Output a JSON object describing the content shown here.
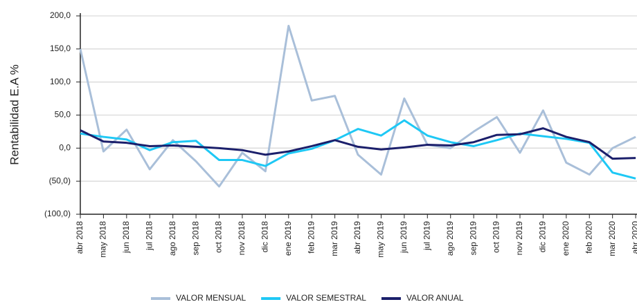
{
  "chart_data": {
    "type": "line",
    "y_label": "Rentabilidad E.A %",
    "categories": [
      "abr 2018",
      "may 2018",
      "jun 2018",
      "jul 2018",
      "ago 2018",
      "sep 2018",
      "oct 2018",
      "nov 2018",
      "dic 2018",
      "ene 2019",
      "feb 2019",
      "mar 2019",
      "abr 2019",
      "may 2019",
      "jun 2019",
      "jul 2019",
      "ago 2019",
      "sep 2019",
      "oct 2019",
      "nov 2019",
      "dic 2019",
      "ene 2020",
      "feb 2020",
      "mar 2020",
      "abr 2020"
    ],
    "series": [
      {
        "name": "VALOR MENSUAL",
        "color": "#a9bfd9",
        "values": [
          150,
          -5,
          28,
          -32,
          12,
          -20,
          -58,
          -7,
          -35,
          185,
          72,
          79,
          -10,
          -40,
          75,
          5,
          0,
          25,
          47,
          -7,
          57,
          -22,
          -40,
          0,
          17
        ]
      },
      {
        "name": "VALOR SEMESTRAL",
        "color": "#1ec8f5",
        "values": [
          22,
          17,
          13,
          -3,
          9,
          11,
          -18,
          -18,
          -27,
          -8,
          -1,
          12,
          29,
          19,
          42,
          19,
          9,
          3,
          12,
          22,
          18,
          14,
          8,
          -37,
          -46
        ]
      },
      {
        "name": "VALOR ANUAL",
        "color": "#1b1f6b",
        "values": [
          27,
          10,
          8,
          3,
          4,
          2,
          0,
          -3,
          -10,
          -5,
          3,
          12,
          2,
          -2,
          1,
          5,
          4,
          9,
          20,
          21,
          30,
          17,
          9,
          -16,
          -15
        ]
      }
    ],
    "ylim": [
      -100,
      200
    ],
    "yticks": [
      {
        "value": -100,
        "label": "(100,0)"
      },
      {
        "value": -50,
        "label": "(50,0)"
      },
      {
        "value": 0,
        "label": "0,0"
      },
      {
        "value": 50,
        "label": "50,0"
      },
      {
        "value": 100,
        "label": "100,0"
      },
      {
        "value": 150,
        "label": "150,0"
      },
      {
        "value": 200,
        "label": "200,0"
      }
    ],
    "grid": true,
    "legend": "bottom"
  }
}
